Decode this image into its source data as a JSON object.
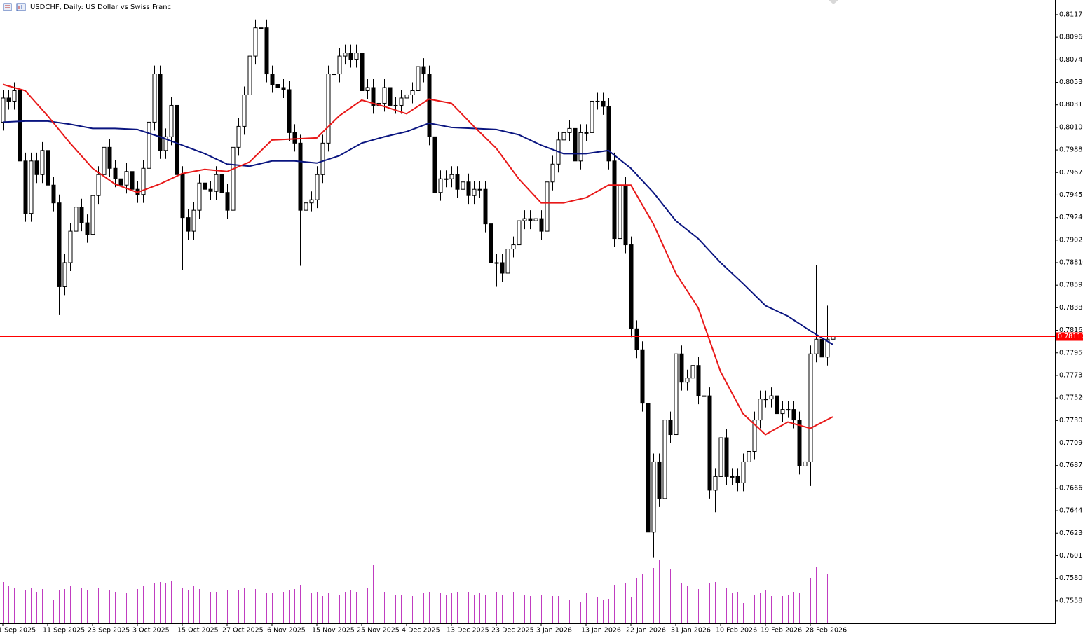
{
  "chart_data": {
    "type": "candlestick",
    "title": "USDCHF, Daily:  US Dollar vs Swiss Franc",
    "categories": [
      "1 Sep 2025",
      null,
      null,
      null,
      null,
      null,
      null,
      null,
      "11 Sep 2025",
      null,
      null,
      null,
      null,
      null,
      null,
      null,
      "23 Sep 2025",
      null,
      null,
      null,
      null,
      null,
      null,
      null,
      "3 Oct 2025",
      null,
      null,
      null,
      null,
      null,
      null,
      null,
      "15 Oct 2025",
      null,
      null,
      null,
      null,
      null,
      null,
      null,
      "27 Oct 2025",
      null,
      null,
      null,
      null,
      null,
      null,
      null,
      "6 Nov 2025",
      null,
      null,
      null,
      null,
      null,
      null,
      null,
      "15 Nov 2025",
      null,
      null,
      null,
      null,
      null,
      null,
      null,
      "25 Nov 2025",
      null,
      null,
      null,
      null,
      null,
      null,
      null,
      "4 Dec 2025",
      null,
      null,
      null,
      null,
      null,
      null,
      null,
      "13 Dec 2025",
      null,
      null,
      null,
      null,
      null,
      null,
      null,
      "23 Dec 2025",
      null,
      null,
      null,
      null,
      null,
      null,
      null,
      "3 Jan 2026",
      null,
      null,
      null,
      null,
      null,
      null,
      null,
      "13 Jan 2026",
      null,
      null,
      null,
      null,
      null,
      null,
      null,
      "22 Jan 2026",
      null,
      null,
      null,
      null,
      null,
      null,
      null,
      "31 Jan 2026",
      null,
      null,
      null,
      null,
      null,
      null,
      null,
      "10 Feb 2026",
      null,
      null,
      null,
      null,
      null,
      null,
      null,
      "19 Feb 2026",
      null,
      null,
      null,
      null,
      null,
      null,
      null,
      "28 Feb 2026",
      null,
      null,
      null,
      null
    ],
    "open": [
      0.8015,
      0.8038,
      0.8035,
      0.8045,
      0.7978,
      0.7928,
      0.7978,
      0.7965,
      0.7988,
      0.7955,
      0.7938,
      0.7858,
      0.7881,
      0.7911,
      0.7934,
      0.7919,
      0.7908,
      0.7945,
      0.7965,
      0.7991,
      0.7971,
      0.7961,
      0.7955,
      0.7968,
      0.7951,
      0.7946,
      0.7971,
      0.8015,
      0.8061,
      0.7988,
      0.8001,
      0.8031,
      0.7965,
      0.7924,
      0.7911,
      0.7931,
      0.7957,
      0.7951,
      0.7949,
      0.7965,
      0.7948,
      0.7931,
      0.7991,
      0.8011,
      0.8041,
      0.8078,
      0.8105,
      0.8105,
      0.8061,
      0.8051,
      0.8048,
      0.8046,
      0.8005,
      0.7995,
      0.7931,
      0.7938,
      0.7941,
      0.7965,
      0.7995,
      0.8061,
      0.8061,
      0.8078,
      0.8081,
      0.8075,
      0.8081,
      0.8045,
      0.8048,
      0.8031,
      0.8033,
      0.8048,
      0.8031,
      0.8031,
      0.8038,
      0.8041,
      0.8045,
      0.8068,
      0.8061,
      0.8001,
      0.7948,
      0.7961,
      0.7961,
      0.7965,
      0.7951,
      0.7958,
      0.7945,
      0.7951,
      0.7951,
      0.7918,
      0.7881,
      0.7881,
      0.7871,
      0.7894,
      0.7898,
      0.7921,
      0.7923,
      0.7921,
      0.7923,
      0.7911,
      0.7958,
      0.7975,
      0.7998,
      0.8005,
      0.8009,
      0.7978,
      0.8005,
      0.8005,
      0.8035,
      0.8035,
      0.803,
      0.7978,
      0.7904,
      0.7955,
      0.7898,
      0.7818,
      0.7798,
      0.7747,
      0.7624,
      0.7691,
      0.7656,
      0.7731,
      0.7717,
      0.7794,
      0.7767,
      0.7771,
      0.7783,
      0.7754,
      0.7754,
      0.7664,
      0.7677,
      0.7714,
      0.7677,
      0.7677,
      0.7671,
      0.7691,
      0.7701,
      0.7731,
      0.7751,
      0.7751,
      0.7754,
      0.7737,
      0.7741,
      0.7741,
      0.7731,
      0.7687,
      0.7691,
      0.7794,
      0.7808,
      0.7791,
      0.7808
    ],
    "high": [
      0.8046,
      0.8046,
      0.8053,
      0.8053,
      0.7986,
      0.7986,
      0.7986,
      0.7996,
      0.7996,
      0.7963,
      0.7946,
      0.7889,
      0.7919,
      0.7942,
      0.7942,
      0.7927,
      0.7953,
      0.7973,
      0.7999,
      0.7999,
      0.7979,
      0.7969,
      0.7976,
      0.7976,
      0.7959,
      0.7979,
      0.8023,
      0.8069,
      0.8069,
      0.8009,
      0.8039,
      0.8039,
      0.7973,
      0.7932,
      0.7939,
      0.7965,
      0.7965,
      0.7959,
      0.7973,
      0.7973,
      0.7956,
      0.7999,
      0.8019,
      0.8049,
      0.8086,
      0.8113,
      0.8123,
      0.8113,
      0.8069,
      0.8059,
      0.8056,
      0.8054,
      0.8013,
      0.8003,
      0.7946,
      0.7949,
      0.7973,
      0.8003,
      0.8069,
      0.8069,
      0.8086,
      0.8089,
      0.8089,
      0.8089,
      0.8089,
      0.8056,
      0.8056,
      0.8041,
      0.8056,
      0.8056,
      0.8039,
      0.8046,
      0.8049,
      0.8053,
      0.8076,
      0.8076,
      0.8069,
      0.8009,
      0.7969,
      0.7969,
      0.7973,
      0.7973,
      0.7966,
      0.7966,
      0.7959,
      0.7959,
      0.7959,
      0.7926,
      0.7889,
      0.7889,
      0.7902,
      0.7906,
      0.7929,
      0.7931,
      0.7931,
      0.7931,
      0.7931,
      0.7966,
      0.7983,
      0.8006,
      0.8013,
      0.8017,
      0.8017,
      0.8013,
      0.8013,
      0.8043,
      0.8043,
      0.8043,
      0.8038,
      0.7986,
      0.7963,
      0.7963,
      0.7906,
      0.7826,
      0.7806,
      0.7755,
      0.7699,
      0.7699,
      0.7739,
      0.7739,
      0.7816,
      0.7802,
      0.7779,
      0.7791,
      0.7791,
      0.7762,
      0.7762,
      0.7685,
      0.7722,
      0.7722,
      0.7685,
      0.7685,
      0.7699,
      0.7709,
      0.7739,
      0.7759,
      0.7759,
      0.7762,
      0.7762,
      0.7749,
      0.7749,
      0.7749,
      0.7739,
      0.7699,
      0.7802,
      0.7879,
      0.7816,
      0.784,
      0.7819
    ],
    "low": [
      0.8007,
      0.8027,
      0.8027,
      0.797,
      0.792,
      0.792,
      0.7957,
      0.7957,
      0.7947,
      0.793,
      0.7831,
      0.785,
      0.7873,
      0.7903,
      0.7911,
      0.79,
      0.79,
      0.7937,
      0.7957,
      0.7963,
      0.7953,
      0.7947,
      0.7947,
      0.7943,
      0.7938,
      0.7938,
      0.7963,
      0.8007,
      0.798,
      0.798,
      0.7993,
      0.7957,
      0.7874,
      0.7903,
      0.7903,
      0.7923,
      0.7943,
      0.7941,
      0.7941,
      0.794,
      0.7923,
      0.7923,
      0.7983,
      0.8003,
      0.8033,
      0.807,
      0.8097,
      0.8053,
      0.8043,
      0.804,
      0.8038,
      0.7997,
      0.7987,
      0.7878,
      0.7923,
      0.793,
      0.7933,
      0.7957,
      0.7987,
      0.8053,
      0.8053,
      0.807,
      0.8067,
      0.8067,
      0.8037,
      0.8037,
      0.8023,
      0.8023,
      0.8025,
      0.8023,
      0.8023,
      0.8023,
      0.803,
      0.8033,
      0.8037,
      0.8053,
      0.7993,
      0.794,
      0.794,
      0.7953,
      0.7953,
      0.7943,
      0.7943,
      0.7937,
      0.7937,
      0.7943,
      0.791,
      0.7873,
      0.7858,
      0.7863,
      0.7863,
      0.7886,
      0.789,
      0.7913,
      0.7913,
      0.7913,
      0.7903,
      0.7903,
      0.795,
      0.7967,
      0.799,
      0.7997,
      0.797,
      0.797,
      0.7997,
      0.7997,
      0.8027,
      0.8022,
      0.797,
      0.7896,
      0.7878,
      0.789,
      0.781,
      0.779,
      0.7739,
      0.7604,
      0.76,
      0.7648,
      0.7648,
      0.7709,
      0.7709,
      0.7759,
      0.7759,
      0.7763,
      0.7746,
      0.7746,
      0.7656,
      0.7643,
      0.7669,
      0.7669,
      0.7669,
      0.7663,
      0.7663,
      0.7683,
      0.7693,
      0.7723,
      0.7743,
      0.7743,
      0.7729,
      0.7729,
      0.7733,
      0.7723,
      0.7679,
      0.7679,
      0.7668,
      0.7786,
      0.7783,
      0.7783,
      0.78
    ],
    "close": [
      0.8038,
      0.8035,
      0.8045,
      0.7978,
      0.7928,
      0.7978,
      0.7965,
      0.7988,
      0.7955,
      0.7938,
      0.7858,
      0.7881,
      0.7911,
      0.7934,
      0.7919,
      0.7908,
      0.7945,
      0.7965,
      0.7991,
      0.7971,
      0.7961,
      0.7955,
      0.7968,
      0.7951,
      0.7946,
      0.7971,
      0.8015,
      0.8061,
      0.7988,
      0.8001,
      0.8031,
      0.7965,
      0.7924,
      0.7911,
      0.7931,
      0.7957,
      0.7951,
      0.7949,
      0.7965,
      0.7948,
      0.7931,
      0.7991,
      0.8011,
      0.8041,
      0.8078,
      0.8105,
      0.8105,
      0.8061,
      0.8051,
      0.8048,
      0.8046,
      0.8005,
      0.7995,
      0.7931,
      0.7938,
      0.7941,
      0.7965,
      0.7995,
      0.8061,
      0.8061,
      0.8078,
      0.8081,
      0.8075,
      0.8081,
      0.8045,
      0.8048,
      0.8031,
      0.8033,
      0.8048,
      0.8031,
      0.8031,
      0.8038,
      0.8041,
      0.8045,
      0.8068,
      0.8061,
      0.8001,
      0.7948,
      0.7961,
      0.7961,
      0.7965,
      0.7951,
      0.7958,
      0.7945,
      0.7951,
      0.7951,
      0.7918,
      0.7881,
      0.7881,
      0.7871,
      0.7894,
      0.7898,
      0.7921,
      0.7923,
      0.7921,
      0.7923,
      0.7911,
      0.7958,
      0.7975,
      0.7998,
      0.8005,
      0.8009,
      0.7978,
      0.8005,
      0.8005,
      0.8035,
      0.8035,
      0.803,
      0.7978,
      0.7904,
      0.7955,
      0.7898,
      0.7818,
      0.7798,
      0.7747,
      0.7624,
      0.7691,
      0.7656,
      0.7731,
      0.7717,
      0.7794,
      0.7767,
      0.7771,
      0.7783,
      0.7754,
      0.7754,
      0.7664,
      0.7677,
      0.7714,
      0.7677,
      0.7677,
      0.7671,
      0.7691,
      0.7701,
      0.7731,
      0.7751,
      0.7751,
      0.7754,
      0.7737,
      0.7741,
      0.7741,
      0.7731,
      0.7687,
      0.7691,
      0.7794,
      0.7808,
      0.7791,
      0.7808,
      0.7811
    ],
    "color_up": "#ffffff",
    "color_down": "#000000",
    "series": [
      {
        "color": "#0a1580",
        "x": [
          0,
          4,
          8,
          12,
          16,
          20,
          24,
          28,
          32,
          36,
          40,
          44,
          48,
          52,
          56,
          60,
          64,
          68,
          72,
          76,
          80,
          84,
          88,
          92,
          96,
          100,
          104,
          108,
          112,
          116,
          120,
          124,
          128,
          132,
          136,
          140,
          144,
          148
        ],
        "values": [
          0.8015,
          0.8016,
          0.8016,
          0.8013,
          0.8009,
          0.8009,
          0.8008,
          0.8001,
          0.7993,
          0.7985,
          0.7975,
          0.7973,
          0.7978,
          0.7978,
          0.7976,
          0.7983,
          0.7995,
          0.8001,
          0.8006,
          0.8014,
          0.801,
          0.8009,
          0.8008,
          0.8003,
          0.7993,
          0.7985,
          0.7985,
          0.7988,
          0.7971,
          0.7948,
          0.7921,
          0.7904,
          0.7881,
          0.7861,
          0.784,
          0.783,
          0.7816,
          0.7803
        ]
      },
      {
        "color": "#e81818",
        "x": [
          0,
          4,
          8,
          12,
          16,
          20,
          24,
          28,
          32,
          36,
          40,
          44,
          48,
          52,
          56,
          60,
          64,
          68,
          72,
          76,
          80,
          84,
          88,
          92,
          96,
          100,
          104,
          108,
          112,
          116,
          120,
          124,
          128,
          132,
          136,
          140,
          144,
          148
        ],
        "values": [
          0.8051,
          0.8045,
          0.8021,
          0.7995,
          0.7971,
          0.7956,
          0.7948,
          0.7956,
          0.7966,
          0.797,
          0.7968,
          0.7977,
          0.7998,
          0.7999,
          0.8,
          0.8021,
          0.8036,
          0.803,
          0.8023,
          0.8037,
          0.8033,
          0.8011,
          0.799,
          0.7961,
          0.7938,
          0.7938,
          0.7943,
          0.7955,
          0.7955,
          0.7918,
          0.7871,
          0.7838,
          0.7777,
          0.7737,
          0.7717,
          0.7729,
          0.7723,
          0.7734
        ]
      }
    ],
    "volume": {
      "color": "#c03cc0",
      "lim": [
        0,
        100
      ],
      "values": [
        58,
        52,
        50,
        48,
        46,
        50,
        44,
        48,
        34,
        32,
        46,
        48,
        52,
        54,
        50,
        46,
        50,
        50,
        48,
        46,
        44,
        46,
        42,
        44,
        48,
        52,
        54,
        56,
        58,
        56,
        60,
        64,
        50,
        46,
        52,
        48,
        46,
        44,
        44,
        50,
        46,
        48,
        46,
        50,
        44,
        48,
        44,
        42,
        42,
        40,
        44,
        46,
        48,
        54,
        46,
        42,
        44,
        38,
        42,
        44,
        40,
        44,
        46,
        44,
        54,
        50,
        82,
        48,
        44,
        38,
        40,
        40,
        38,
        38,
        36,
        42,
        44,
        40,
        42,
        40,
        42,
        44,
        48,
        44,
        40,
        42,
        40,
        36,
        44,
        40,
        40,
        44,
        42,
        40,
        38,
        40,
        40,
        44,
        38,
        38,
        34,
        32,
        34,
        30,
        42,
        40,
        36,
        32,
        34,
        54,
        54,
        56,
        36,
        64,
        70,
        76,
        78,
        90,
        60,
        76,
        68,
        56,
        52,
        52,
        48,
        46,
        56,
        58,
        50,
        50,
        42,
        44,
        28,
        38,
        40,
        42,
        46,
        38,
        40,
        38,
        40,
        44,
        42,
        28,
        64,
        80,
        66,
        70,
        10
      ]
    },
    "last_price": {
      "value": 0.7811,
      "label": "0.78110",
      "color": "#ff0000"
    },
    "ylim": [
      0.7537,
      0.81315
    ],
    "yticks": [
      0.75585,
      {
        "value": 0.758,
        "label": "0.75800"
      },
      0.76015,
      {
        "value": 0.7623,
        "label": "0.76230"
      },
      0.76445,
      {
        "value": 0.7666,
        "label": "0.76660"
      },
      0.76875,
      {
        "value": 0.7709,
        "label": "0.77090"
      },
      0.77305,
      {
        "value": 0.7752,
        "label": "0.77520"
      },
      0.77735,
      {
        "value": 0.7795,
        "label": "0.77950"
      },
      0.78165,
      {
        "value": 0.7838,
        "label": "0.78380"
      },
      0.78595,
      {
        "value": 0.7881,
        "label": "0.78810"
      },
      0.79025,
      {
        "value": 0.7924,
        "label": "0.79240"
      },
      0.79455,
      {
        "value": 0.7967,
        "label": "0.79670"
      },
      0.79885,
      {
        "value": 0.801,
        "label": "0.80100"
      },
      0.80315,
      {
        "value": 0.8053,
        "label": "0.80530"
      },
      0.80745,
      {
        "value": 0.8096,
        "label": "0.80960"
      },
      0.81175
    ],
    "grid": false
  }
}
